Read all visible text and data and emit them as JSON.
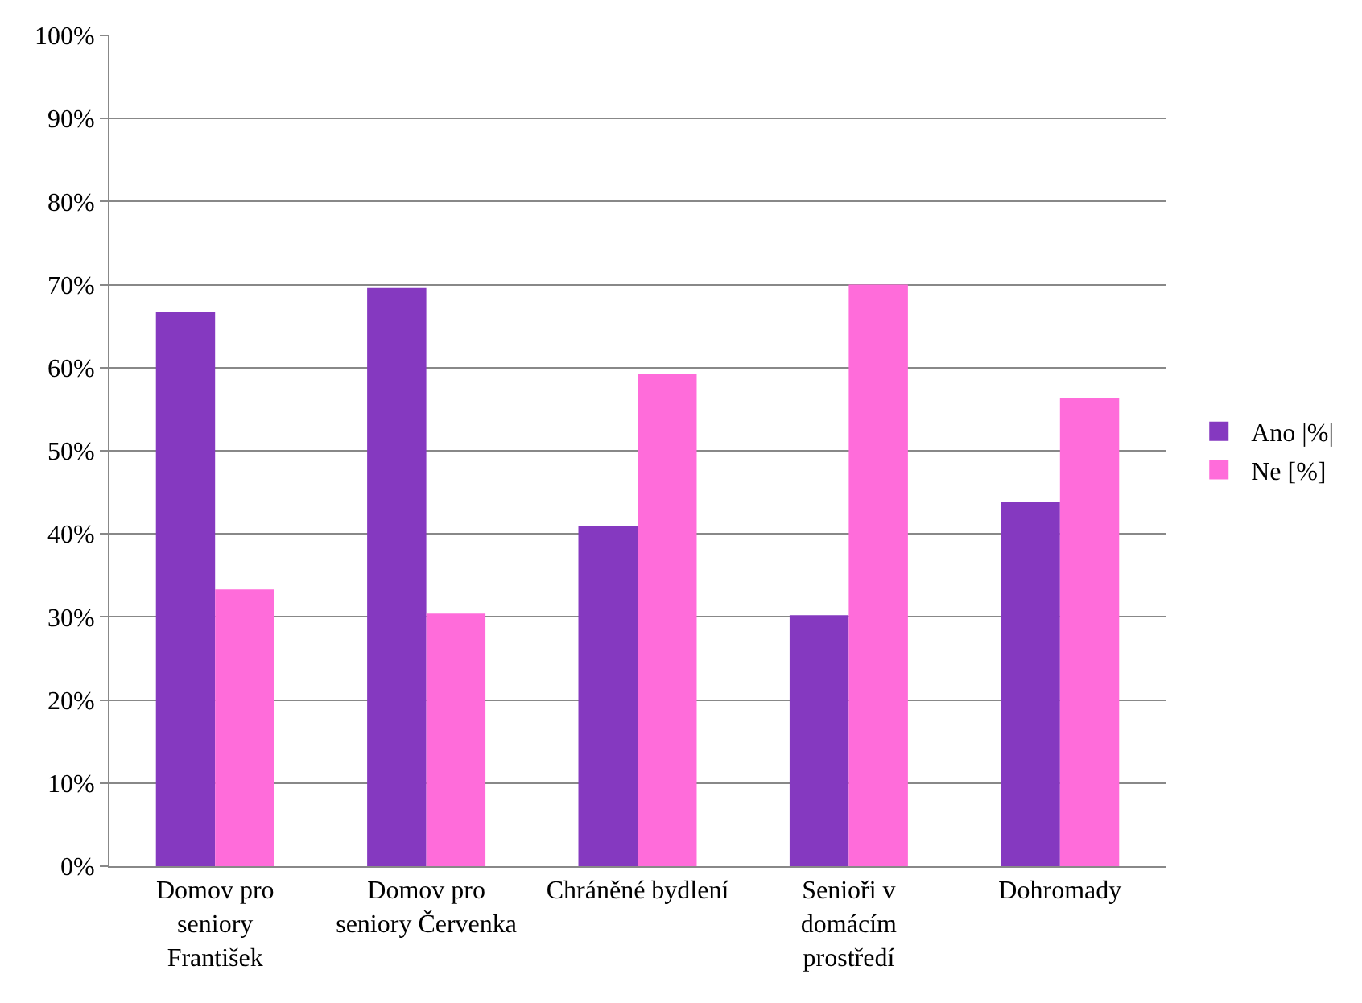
{
  "chart_data": {
    "type": "bar",
    "categories": [
      "Domov pro seniory František",
      "Domov pro seniory Červenka",
      "Chráněné bydlení",
      "Senioři v domácím prostředí",
      "Dohromady"
    ],
    "series": [
      {
        "name": "Ano |%|",
        "color": "#8539c0",
        "values": [
          66.7,
          69.6,
          40.9,
          30.2,
          43.8
        ]
      },
      {
        "name": "Ne [%]",
        "color": "#ff6cda",
        "values": [
          33.3,
          30.4,
          59.3,
          70,
          56.4
        ]
      }
    ],
    "ylim": [
      0,
      100
    ],
    "yticks": [
      {
        "value": 0,
        "label": "0%"
      },
      {
        "value": 10,
        "label": "10%"
      },
      {
        "value": 20,
        "label": "20%"
      },
      {
        "value": 30,
        "label": "30%"
      },
      {
        "value": 40,
        "label": "40%"
      },
      {
        "value": 50,
        "label": "50%"
      },
      {
        "value": 60,
        "label": "60%"
      },
      {
        "value": 70,
        "label": "70%"
      },
      {
        "value": 80,
        "label": "80%"
      },
      {
        "value": 90,
        "label": "90%"
      },
      {
        "value": 100,
        "label": "100%"
      }
    ],
    "grid": "y",
    "legend": "right"
  }
}
